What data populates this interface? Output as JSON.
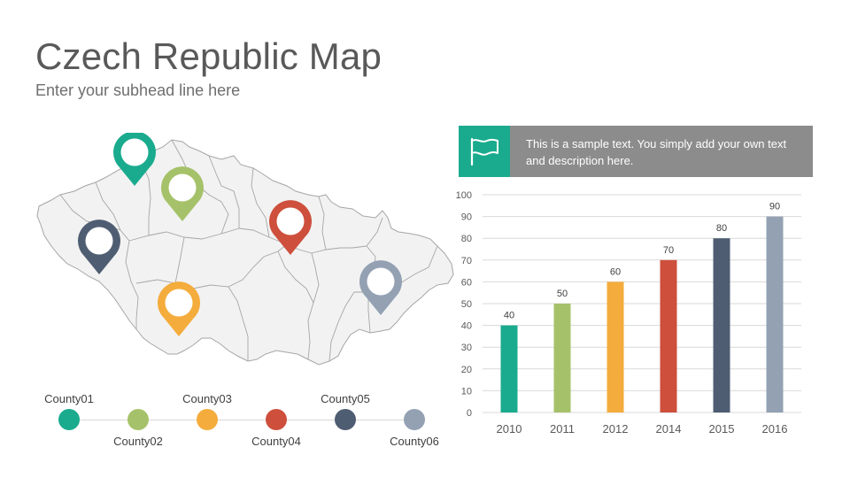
{
  "slide": {
    "title": "Czech Republic Map",
    "subtitle": "Enter your subhead line here"
  },
  "callout": {
    "icon": "flag-icon",
    "text": "This is a sample text. You simply add your own text and description here."
  },
  "map": {
    "pins": [
      {
        "county": "County01",
        "color": "#1aab8e"
      },
      {
        "county": "County02",
        "color": "#a5c26a"
      },
      {
        "county": "County03",
        "color": "#f4ac3c"
      },
      {
        "county": "County04",
        "color": "#cd4f3c"
      },
      {
        "county": "County05",
        "color": "#4f5d72"
      },
      {
        "county": "County06",
        "color": "#93a1b3"
      }
    ]
  },
  "legend": {
    "items": [
      {
        "label": "County01",
        "color": "#1aab8e"
      },
      {
        "label": "County02",
        "color": "#a5c26a"
      },
      {
        "label": "County03",
        "color": "#f4ac3c"
      },
      {
        "label": "County04",
        "color": "#cd4f3c"
      },
      {
        "label": "County05",
        "color": "#4f5d72"
      },
      {
        "label": "County06",
        "color": "#93a1b3"
      }
    ]
  },
  "chart_data": {
    "type": "bar",
    "categories": [
      "2010",
      "2011",
      "2012",
      "2014",
      "2015",
      "2016"
    ],
    "values": [
      40,
      50,
      60,
      70,
      80,
      90
    ],
    "colors": [
      "#1aab8e",
      "#a5c26a",
      "#f4ac3c",
      "#cd4f3c",
      "#4f5d72",
      "#93a1b3"
    ],
    "title": "",
    "xlabel": "",
    "ylabel": "",
    "ylim": [
      0,
      100
    ],
    "yticks": [
      0,
      10,
      20,
      30,
      40,
      50,
      60,
      70,
      80,
      90,
      100
    ],
    "data_labels": true,
    "grid": true,
    "legend": "none"
  }
}
